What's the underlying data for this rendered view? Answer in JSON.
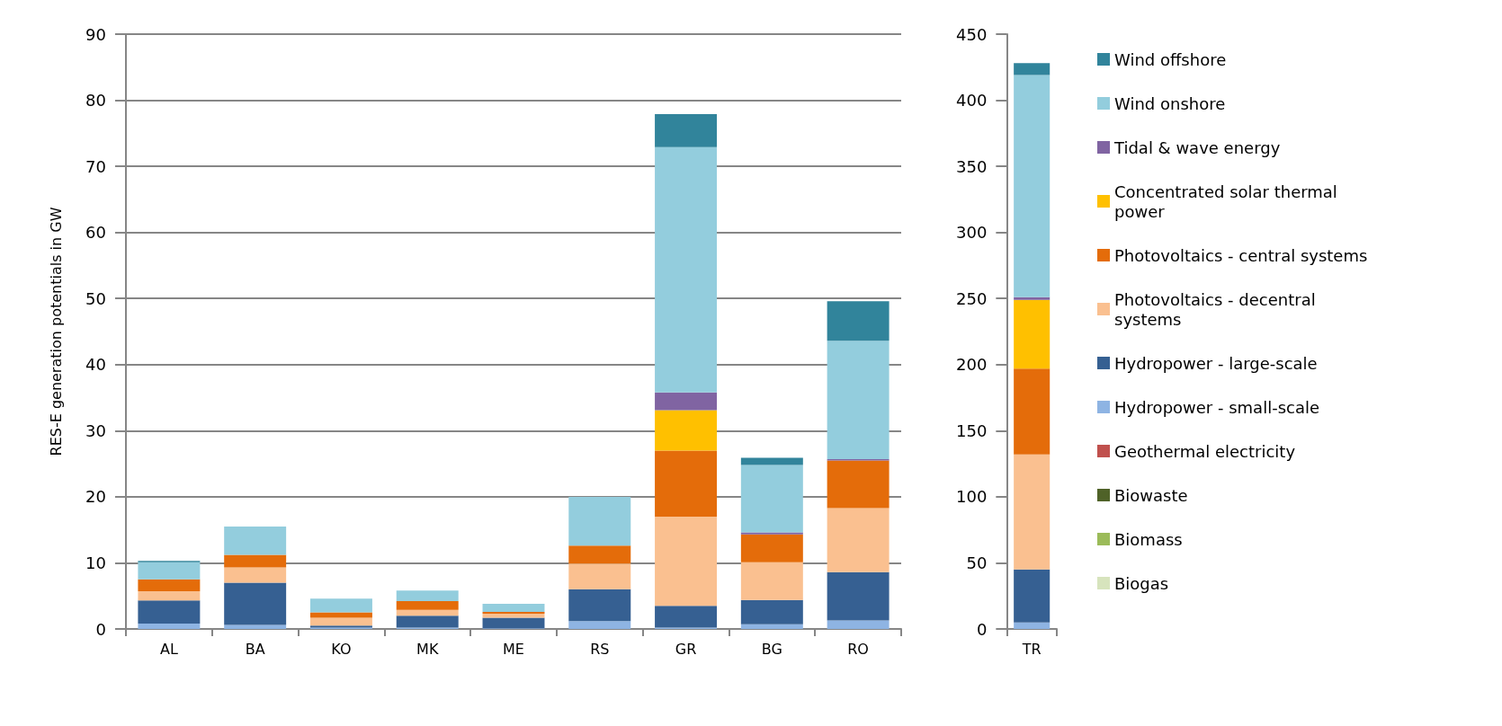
{
  "chart_data": [
    {
      "type": "bar",
      "stacked": true,
      "ylabel": "RES-E generation potentials in GW",
      "categories": [
        "AL",
        "BA",
        "KO",
        "MK",
        "ME",
        "RS",
        "GR",
        "BG",
        "RO"
      ],
      "ylim": [
        0,
        90
      ],
      "yticks": [
        0,
        10,
        20,
        30,
        40,
        50,
        60,
        70,
        80,
        90
      ],
      "grid": "y",
      "legend": false,
      "series": [
        {
          "color": "#d7e4bd",
          "values": [
            0,
            0,
            0,
            0,
            0,
            0,
            0,
            0,
            0
          ]
        },
        {
          "color": "#9bbb59",
          "values": [
            0,
            0,
            0,
            0,
            0,
            0,
            0,
            0,
            0
          ]
        },
        {
          "color": "#4f6228",
          "values": [
            0,
            0,
            0,
            0,
            0,
            0,
            0,
            0,
            0
          ]
        },
        {
          "color": "#c0504d",
          "values": [
            0,
            0,
            0,
            0,
            0,
            0,
            0,
            0,
            0
          ]
        },
        {
          "color": "#8eb4e3",
          "values": [
            0.8,
            0.6,
            0.2,
            0.2,
            0.1,
            1.2,
            0.2,
            0.7,
            1.3
          ]
        },
        {
          "color": "#366092",
          "values": [
            3.5,
            6.4,
            0.3,
            1.8,
            1.6,
            4.8,
            3.3,
            3.7,
            7.3
          ]
        },
        {
          "color": "#fac090",
          "values": [
            1.4,
            2.3,
            1.2,
            0.9,
            0.6,
            3.9,
            13.5,
            5.7,
            9.7
          ]
        },
        {
          "color": "#e46c0a",
          "values": [
            1.8,
            1.9,
            0.8,
            1.3,
            0.3,
            2.7,
            10.0,
            4.2,
            7.2
          ]
        },
        {
          "color": "#ffc000",
          "values": [
            0,
            0,
            0,
            0,
            0,
            0,
            6.1,
            0,
            0
          ]
        },
        {
          "color": "#8064a2",
          "values": [
            0,
            0,
            0,
            0,
            0,
            0,
            2.7,
            0.3,
            0.2
          ]
        },
        {
          "color": "#93cddd",
          "values": [
            2.6,
            4.3,
            2.1,
            1.6,
            1.2,
            7.4,
            37.1,
            10.2,
            17.9
          ]
        },
        {
          "color": "#31849b",
          "values": [
            0.2,
            0,
            0,
            0,
            0,
            0,
            5.0,
            1.1,
            6.0
          ]
        }
      ]
    },
    {
      "type": "bar",
      "stacked": true,
      "categories": [
        "TR"
      ],
      "ylim": [
        0,
        450
      ],
      "yticks": [
        0,
        50,
        100,
        150,
        200,
        250,
        300,
        350,
        400,
        450
      ],
      "grid": false,
      "legend": "right",
      "series": [
        {
          "name": "Biogas",
          "color": "#d7e4bd",
          "values": [
            0
          ]
        },
        {
          "name": "Biomass",
          "color": "#9bbb59",
          "values": [
            0
          ]
        },
        {
          "name": "Biowaste",
          "color": "#4f6228",
          "values": [
            0
          ]
        },
        {
          "name": "Geothermal electricity",
          "color": "#c0504d",
          "values": [
            0
          ]
        },
        {
          "name": "Hydropower - small-scale",
          "color": "#8eb4e3",
          "values": [
            5
          ]
        },
        {
          "name": "Hydropower - large-scale",
          "color": "#366092",
          "values": [
            40
          ]
        },
        {
          "name": "Photovoltaics - decentral systems",
          "color": "#fac090",
          "values": [
            87
          ]
        },
        {
          "name": "Photovoltaics - central systems",
          "color": "#e46c0a",
          "values": [
            65
          ]
        },
        {
          "name": "Concentrated solar thermal power",
          "color": "#ffc000",
          "values": [
            52
          ]
        },
        {
          "name": "Tidal & wave energy",
          "color": "#8064a2",
          "values": [
            2
          ]
        },
        {
          "name": "Wind onshore",
          "color": "#93cddd",
          "values": [
            168
          ]
        },
        {
          "name": "Wind offshore",
          "color": "#31849b",
          "values": [
            9
          ]
        }
      ]
    }
  ]
}
